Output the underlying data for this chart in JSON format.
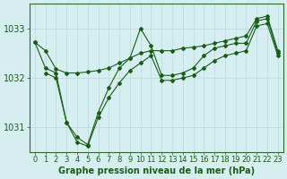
{
  "bg_color": "#d6eef0",
  "grid_color": "#b8d8dc",
  "line_color": "#1a5c1a",
  "title": "Graphe pression niveau de la mer (hPa)",
  "title_fontsize": 7,
  "ylim": [
    1030.5,
    1033.5
  ],
  "xlim": [
    -0.5,
    23.5
  ],
  "yticks": [
    1031,
    1032,
    1033
  ],
  "xticks": [
    0,
    1,
    2,
    3,
    4,
    5,
    6,
    7,
    8,
    9,
    10,
    11,
    12,
    13,
    14,
    15,
    16,
    17,
    18,
    19,
    20,
    21,
    22,
    23
  ],
  "series": [
    {
      "x": [
        0,
        1,
        2,
        3,
        4,
        5,
        6,
        7,
        8,
        9,
        10,
        11,
        12,
        13,
        14,
        15,
        16,
        17,
        18,
        19,
        20,
        21,
        22,
        23
      ],
      "y": [
        1032.72,
        1032.55,
        1032.18,
        1032.1,
        1032.1,
        1032.12,
        1032.15,
        1032.2,
        1032.3,
        1032.4,
        1032.5,
        1032.55,
        1032.55,
        1032.55,
        1032.6,
        1032.62,
        1032.65,
        1032.7,
        1032.75,
        1032.8,
        1032.85,
        1033.2,
        1033.25,
        1032.55
      ]
    },
    {
      "x": [
        0,
        1,
        2,
        3,
        4,
        5,
        6,
        7,
        8,
        9,
        10,
        11,
        12,
        13,
        14,
        15,
        16,
        17,
        18,
        19,
        20,
        21,
        22,
        23
      ],
      "y": [
        1032.72,
        1032.2,
        1032.1,
        1031.1,
        1030.8,
        1030.65,
        1031.3,
        1031.8,
        1032.2,
        1032.4,
        1033.0,
        1032.65,
        1032.05,
        1032.05,
        1032.1,
        1032.2,
        1032.45,
        1032.6,
        1032.65,
        1032.7,
        1032.7,
        1033.15,
        1033.2,
        1032.5
      ]
    },
    {
      "x": [
        1,
        2,
        3,
        4,
        5,
        6,
        7,
        8,
        9,
        10,
        11,
        12,
        13,
        14,
        15,
        16,
        17,
        18,
        19,
        20,
        21,
        22,
        23
      ],
      "y": [
        1032.1,
        1032.0,
        1031.1,
        1030.7,
        1030.62,
        1031.2,
        1031.6,
        1031.9,
        1032.15,
        1032.3,
        1032.45,
        1031.95,
        1031.95,
        1032.0,
        1032.05,
        1032.2,
        1032.35,
        1032.45,
        1032.5,
        1032.55,
        1033.05,
        1033.1,
        1032.45
      ]
    }
  ]
}
